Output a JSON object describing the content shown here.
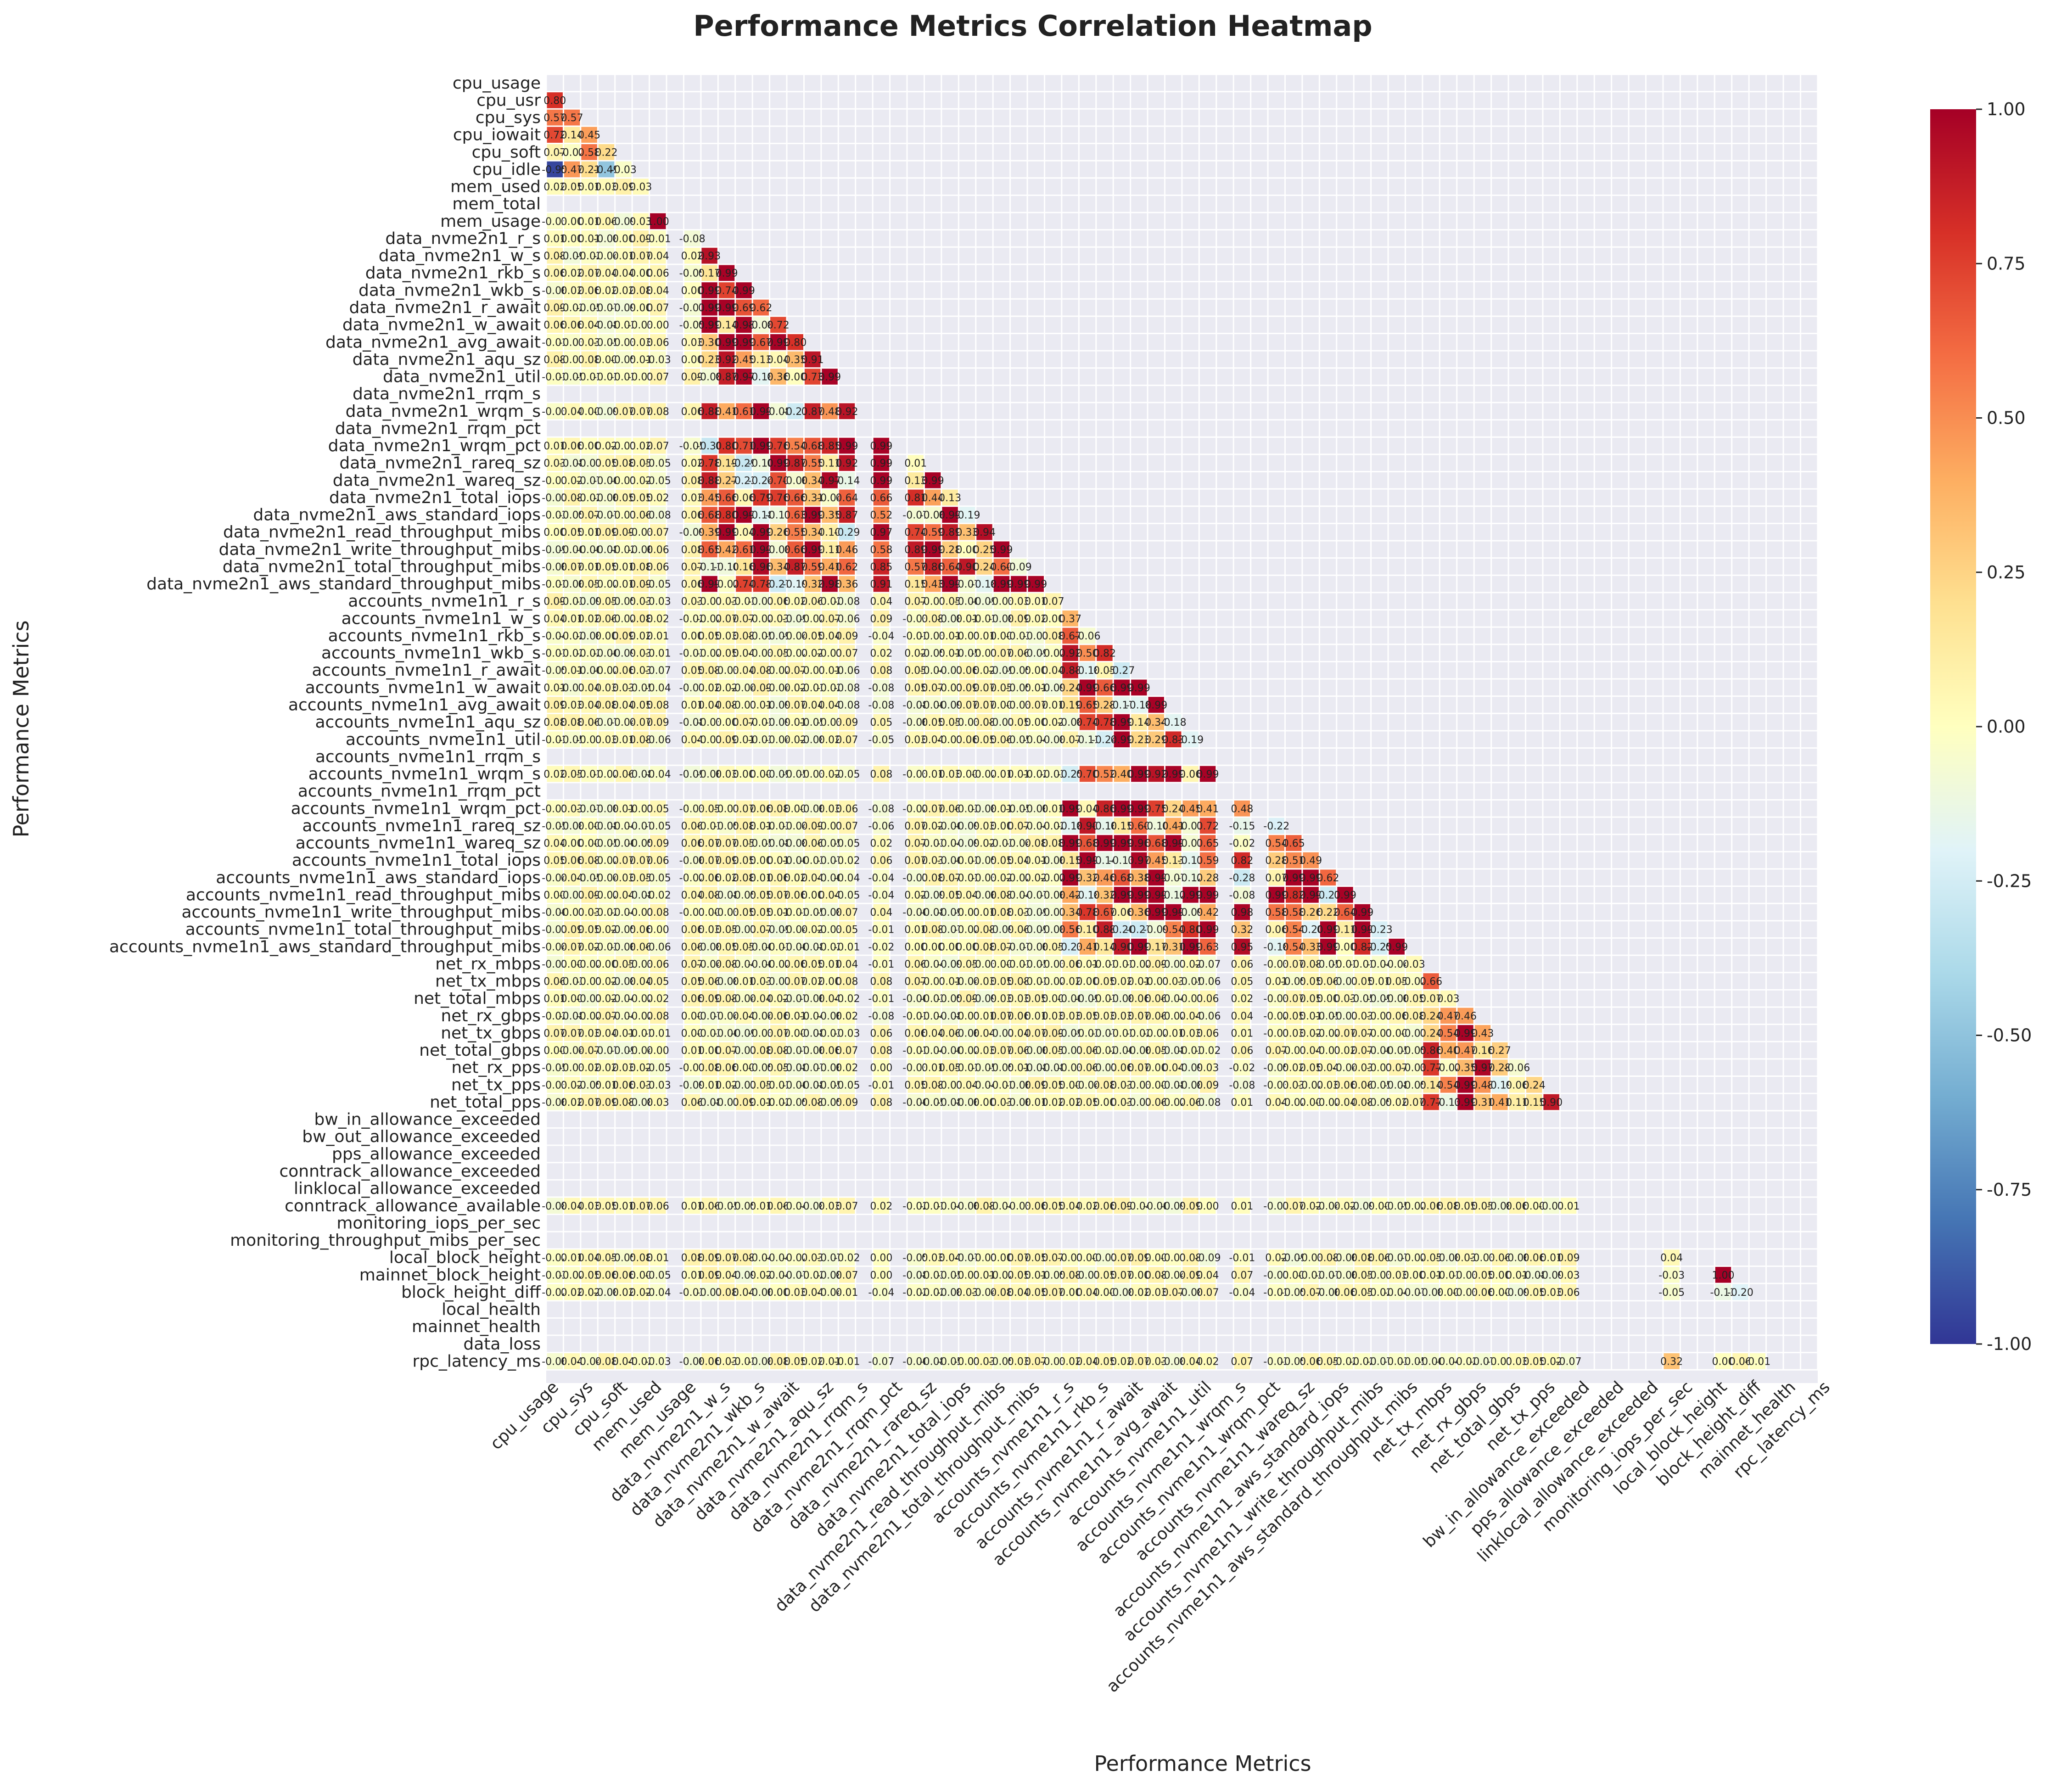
{
  "chart_data": {
    "type": "heatmap",
    "title": "Performance Metrics Correlation Heatmap",
    "xlabel": "Performance Metrics",
    "ylabel": "Performance Metrics",
    "colormap": "RdYlBu_r",
    "vmin": -1.0,
    "vmax": 1.0,
    "mask": "upper-triangle including diagonal",
    "colorbar_ticks": [
      "1.00",
      "0.75",
      "0.50",
      "0.25",
      "0.00",
      "-0.25",
      "-0.50",
      "-0.75",
      "-1.00"
    ],
    "colors": {
      "low": "#313695",
      "mid": "#ffffbf",
      "high": "#a50026",
      "background": "#eaeaf2",
      "grid": "#ffffff"
    },
    "metrics": [
      "cpu_usage",
      "cpu_usr",
      "cpu_sys",
      "cpu_iowait",
      "cpu_soft",
      "cpu_idle",
      "mem_used",
      "mem_total",
      "mem_usage",
      "data_nvme2n1_r_s",
      "data_nvme2n1_w_s",
      "data_nvme2n1_rkb_s",
      "data_nvme2n1_wkb_s",
      "data_nvme2n1_r_await",
      "data_nvme2n1_w_await",
      "data_nvme2n1_avg_await",
      "data_nvme2n1_aqu_sz",
      "data_nvme2n1_util",
      "data_nvme2n1_rrqm_s",
      "data_nvme2n1_wrqm_s",
      "data_nvme2n1_rrqm_pct",
      "data_nvme2n1_wrqm_pct",
      "data_nvme2n1_rareq_sz",
      "data_nvme2n1_wareq_sz",
      "data_nvme2n1_total_iops",
      "data_nvme2n1_aws_standard_iops",
      "data_nvme2n1_read_throughput_mibs",
      "data_nvme2n1_write_throughput_mibs",
      "data_nvme2n1_total_throughput_mibs",
      "data_nvme2n1_aws_standard_throughput_mibs",
      "accounts_nvme1n1_r_s",
      "accounts_nvme1n1_w_s",
      "accounts_nvme1n1_rkb_s",
      "accounts_nvme1n1_wkb_s",
      "accounts_nvme1n1_r_await",
      "accounts_nvme1n1_w_await",
      "accounts_nvme1n1_avg_await",
      "accounts_nvme1n1_aqu_sz",
      "accounts_nvme1n1_util",
      "accounts_nvme1n1_rrqm_s",
      "accounts_nvme1n1_wrqm_s",
      "accounts_nvme1n1_rrqm_pct",
      "accounts_nvme1n1_wrqm_pct",
      "accounts_nvme1n1_rareq_sz",
      "accounts_nvme1n1_wareq_sz",
      "accounts_nvme1n1_total_iops",
      "accounts_nvme1n1_aws_standard_iops",
      "accounts_nvme1n1_read_throughput_mibs",
      "accounts_nvme1n1_write_throughput_mibs",
      "accounts_nvme1n1_total_throughput_mibs",
      "accounts_nvme1n1_aws_standard_throughput_mibs",
      "net_rx_mbps",
      "net_tx_mbps",
      "net_total_mbps",
      "net_rx_gbps",
      "net_tx_gbps",
      "net_total_gbps",
      "net_rx_pps",
      "net_tx_pps",
      "net_total_pps",
      "bw_in_allowance_exceeded",
      "bw_out_allowance_exceeded",
      "pps_allowance_exceeded",
      "conntrack_allowance_exceeded",
      "linklocal_allowance_exceeded",
      "conntrack_allowance_available",
      "monitoring_iops_per_sec",
      "monitoring_throughput_mibs_per_sec",
      "local_block_height",
      "mainnet_block_height",
      "block_height_diff",
      "local_health",
      "mainnet_health",
      "data_loss",
      "rpc_latency_ms"
    ],
    "x_tick_labels": [
      "cpu_usage",
      "cpu_sys",
      "cpu_soft",
      "mem_used",
      "mem_usage",
      "data_nvme2n1_w_s",
      "data_nvme2n1_wkb_s",
      "data_nvme2n1_w_await",
      "data_nvme2n1_aqu_sz",
      "data_nvme2n1_rrqm_s",
      "data_nvme2n1_rrqm_pct",
      "data_nvme2n1_rareq_sz",
      "data_nvme2n1_total_iops",
      "data_nvme2n1_read_throughput_mibs",
      "data_nvme2n1_total_throughput_mibs",
      "accounts_nvme1n1_r_s",
      "accounts_nvme1n1_rkb_s",
      "accounts_nvme1n1_r_await",
      "accounts_nvme1n1_avg_await",
      "accounts_nvme1n1_util",
      "accounts_nvme1n1_wrqm_s",
      "accounts_nvme1n1_wrqm_pct",
      "accounts_nvme1n1_wareq_sz",
      "accounts_nvme1n1_aws_standard_iops",
      "accounts_nvme1n1_write_throughput_mibs",
      "accounts_nvme1n1_aws_standard_throughput_mibs",
      "net_tx_mbps",
      "net_rx_gbps",
      "net_total_gbps",
      "net_tx_pps",
      "bw_in_allowance_exceeded",
      "pps_allowance_exceeded",
      "linklocal_allowance_exceeded",
      "monitoring_iops_per_sec",
      "local_block_height",
      "block_height_diff",
      "mainnet_health",
      "rpc_latency_ms"
    ],
    "grid": true,
    "legend": "colorbar right"
  }
}
